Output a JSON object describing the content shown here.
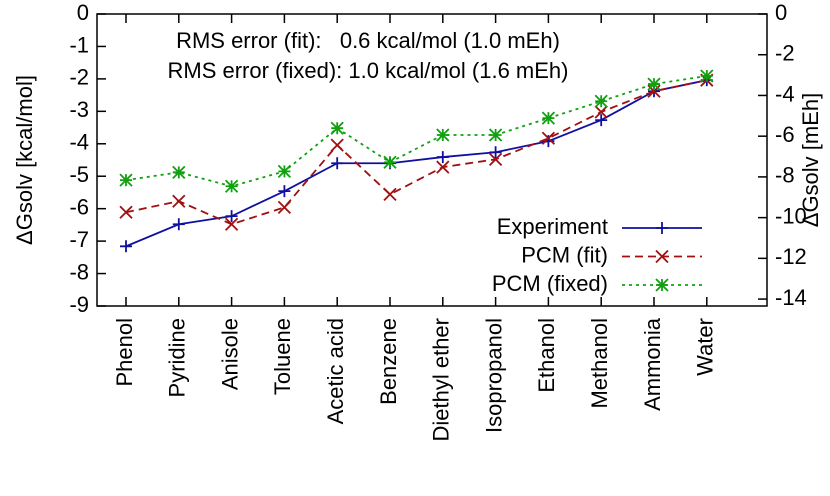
{
  "chart_data": {
    "type": "line",
    "ylabel": "ΔGsolv [kcal/mol]",
    "y2label": "ΔGsolv [mEh]",
    "annotations": [
      "RMS error (fit):   0.6 kcal/mol (1.0 mEh)",
      "RMS error (fixed): 1.0 kcal/mol (1.6 mEh)"
    ],
    "categories": [
      "Phenol",
      "Pyridine",
      "Anisole",
      "Toluene",
      "Acetic acid",
      "Benzene",
      "Diethyl ether",
      "Isopropanol",
      "Ethanol",
      "Methanol",
      "Ammonia",
      "Water"
    ],
    "ylim": [
      -9,
      0
    ],
    "yticks": [
      0,
      -1,
      -2,
      -3,
      -4,
      -5,
      -6,
      -7,
      -8,
      -9
    ],
    "y2lim": [
      -14.34,
      0
    ],
    "y2ticks": [
      0,
      -2,
      -4,
      -6,
      -8,
      -10,
      -12,
      -14
    ],
    "legend": "lower right",
    "series": [
      {
        "name": "Experiment",
        "color": "#1010a0",
        "marker": "plus",
        "dash": "solid",
        "values": [
          -7.16,
          -6.48,
          -6.23,
          -5.46,
          -4.6,
          -4.6,
          -4.41,
          -4.26,
          -3.92,
          -3.27,
          -2.38,
          -2.04
        ]
      },
      {
        "name": "PCM (fit)",
        "color": "#a01010",
        "marker": "cross",
        "dash": "dashed",
        "values": [
          -6.11,
          -5.77,
          -6.48,
          -5.96,
          -4.04,
          -5.56,
          -4.72,
          -4.48,
          -3.83,
          -3.02,
          -2.38,
          -2.04
        ]
      },
      {
        "name": "PCM (fixed)",
        "color": "#10a010",
        "marker": "star",
        "dash": "dotted",
        "values": [
          -5.12,
          -4.88,
          -5.31,
          -4.85,
          -3.52,
          -4.57,
          -3.73,
          -3.73,
          -3.21,
          -2.69,
          -2.16,
          -1.91
        ]
      }
    ]
  }
}
